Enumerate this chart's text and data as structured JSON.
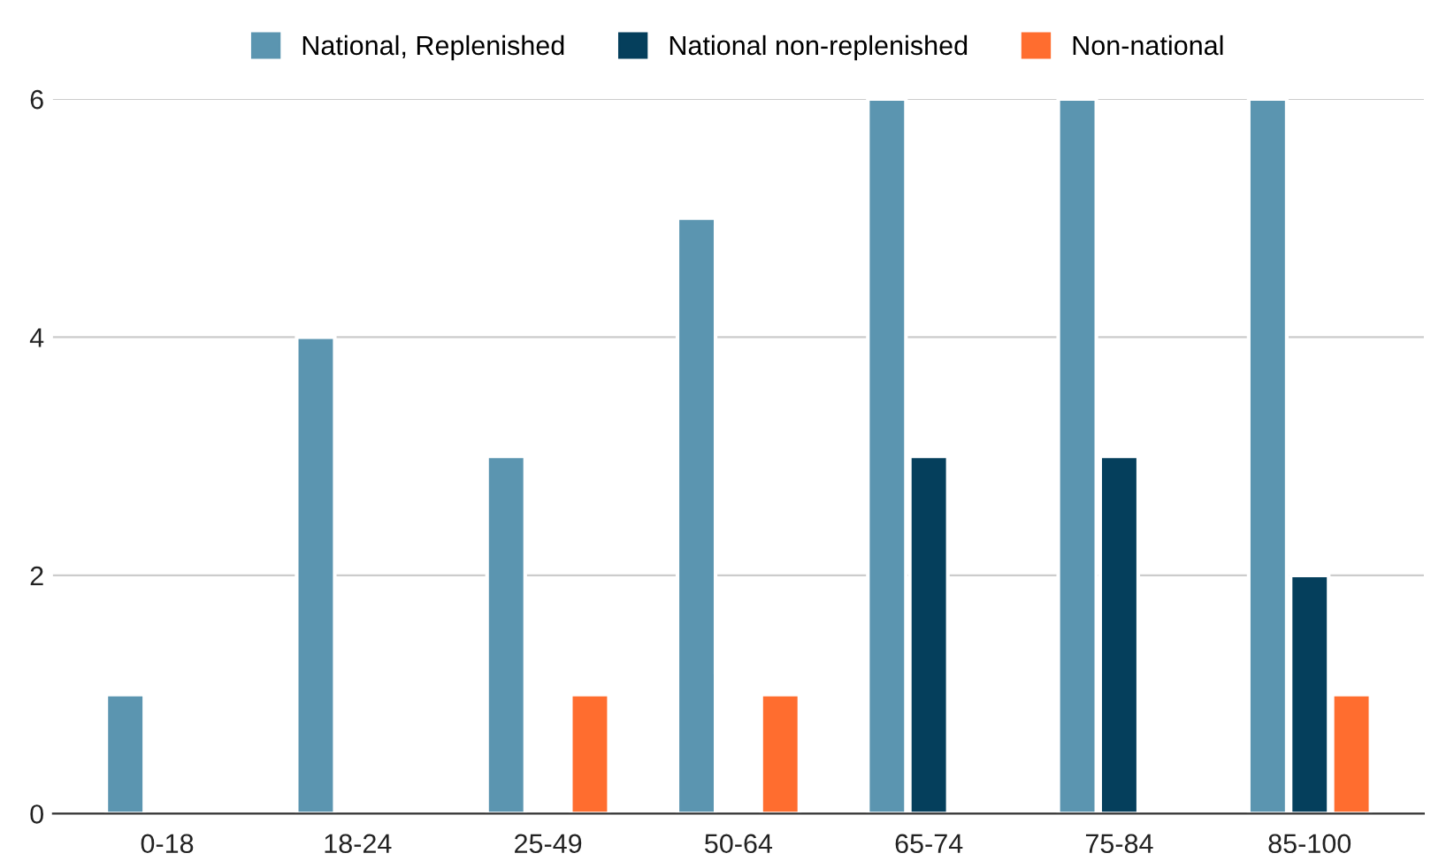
{
  "chart_data": {
    "type": "bar",
    "categories": [
      "0-18",
      "18-24",
      "25-49",
      "50-64",
      "65-74",
      "75-84",
      "85-100"
    ],
    "series": [
      {
        "name": "National, Replenished",
        "color": "#5b95b0",
        "values": [
          1,
          4,
          3,
          5,
          6,
          6,
          6
        ]
      },
      {
        "name": "National non-replenished",
        "color": "#053f5c",
        "values": [
          null,
          null,
          null,
          null,
          3,
          3,
          2
        ]
      },
      {
        "name": "Non-national",
        "color": "#ff6d2f",
        "values": [
          null,
          null,
          1,
          1,
          null,
          null,
          1
        ]
      }
    ],
    "ylim": [
      0,
      6
    ],
    "yticks": [
      0,
      2,
      4,
      6
    ],
    "grid": "y",
    "legend": "top"
  }
}
